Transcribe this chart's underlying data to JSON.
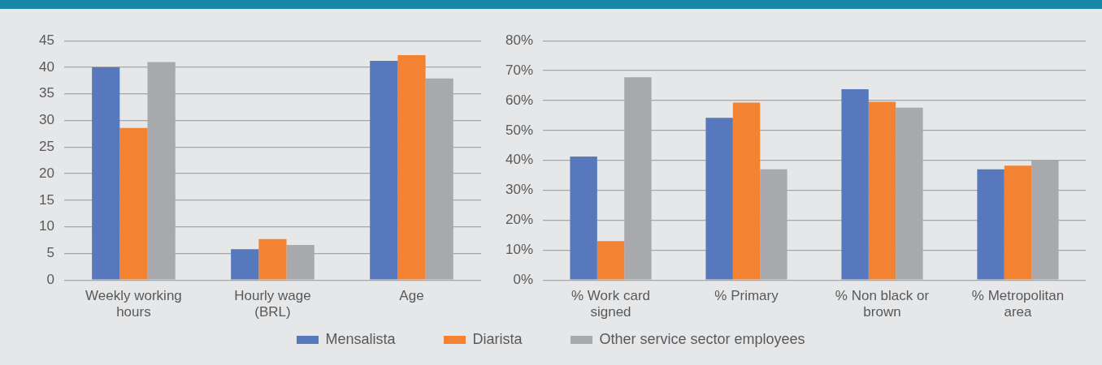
{
  "chart_data": [
    {
      "type": "bar",
      "categories": [
        "Weekly working hours",
        "Hourly wage (BRL)",
        "Age"
      ],
      "series": [
        {
          "color": "#5778bc",
          "values": [
            40,
            5.8,
            41.2
          ]
        },
        {
          "color": "#f38233",
          "values": [
            28.6,
            7.7,
            42.3
          ]
        },
        {
          "color": "#a8a9ad",
          "values": [
            41,
            6.6,
            37.9
          ]
        }
      ],
      "ylim": [
        0,
        45
      ],
      "yticks": [
        0,
        5,
        10,
        15,
        20,
        25,
        30,
        35,
        40,
        45
      ],
      "grid": "y"
    },
    {
      "type": "bar",
      "categories": [
        "% Work card signed",
        "% Primary",
        "% Non black or brown",
        "% Metropolitan area"
      ],
      "series": [
        {
          "name": "Mensalista",
          "color": "#5778bc",
          "values": [
            41.3,
            54.2,
            63.8,
            37
          ]
        },
        {
          "name": "Diarista",
          "color": "#f38233",
          "values": [
            13,
            59.3,
            59.6,
            38.2
          ]
        },
        {
          "name": "Other service sector employees",
          "color": "#a8a9ad",
          "values": [
            67.8,
            37,
            57.6,
            40
          ]
        }
      ],
      "ylim": [
        0,
        80
      ],
      "yticks": [
        {
          "value": 0,
          "label": "0%"
        },
        {
          "value": 10,
          "label": "10%"
        },
        {
          "value": 20,
          "label": "20%"
        },
        {
          "value": 30,
          "label": "30%"
        },
        {
          "value": 40,
          "label": "40%"
        },
        {
          "value": 50,
          "label": "50%"
        },
        {
          "value": 60,
          "label": "60%"
        },
        {
          "value": 70,
          "label": "70%"
        },
        {
          "value": 80,
          "label": "80%"
        }
      ],
      "grid": "y",
      "legend": "bottom"
    }
  ]
}
